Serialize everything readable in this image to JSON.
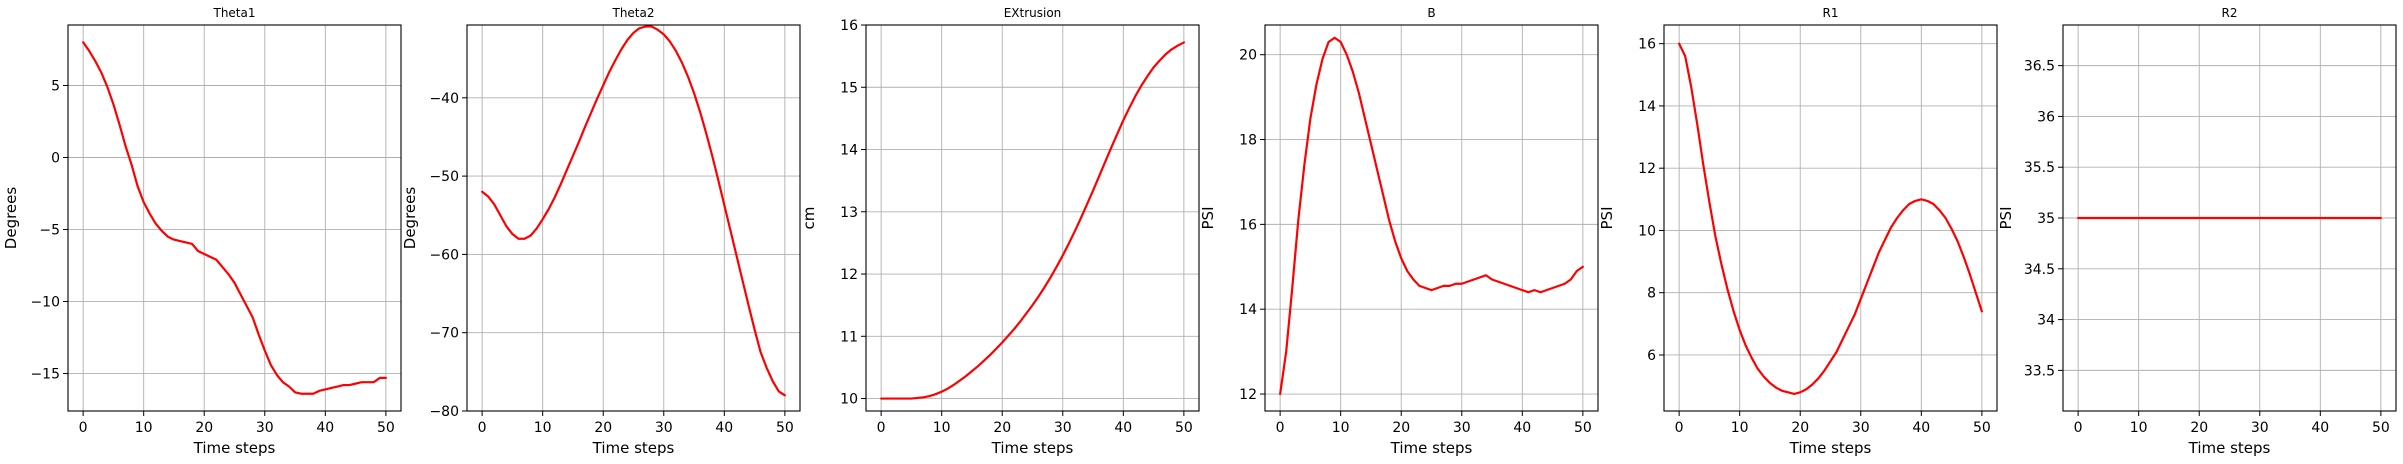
{
  "figure": {
    "line_color": "#ff0000",
    "grid": true
  },
  "chart_data": [
    {
      "type": "line",
      "title": "Theta1",
      "xlabel": "Time steps",
      "ylabel": "Degrees",
      "xlim": [
        -2.5,
        52.5
      ],
      "ylim": [
        -17.6,
        9.2
      ],
      "xticks": [
        0,
        10,
        20,
        30,
        40,
        50
      ],
      "yticks": [
        5,
        0,
        -5,
        -10,
        -15
      ],
      "series": [
        {
          "x": [
            0,
            1,
            2,
            3,
            4,
            5,
            6,
            7,
            8,
            9,
            10,
            11,
            12,
            13,
            14,
            15,
            16,
            17,
            18,
            19,
            20,
            21,
            22,
            23,
            24,
            25,
            26,
            27,
            28,
            29,
            30,
            31,
            32,
            33,
            34,
            35,
            36,
            37,
            38,
            39,
            40,
            41,
            42,
            43,
            44,
            45,
            46,
            47,
            48,
            49,
            50
          ],
          "y": [
            8.0,
            7.4,
            6.7,
            5.9,
            4.9,
            3.7,
            2.3,
            0.8,
            -0.5,
            -2.0,
            -3.1,
            -3.9,
            -4.6,
            -5.1,
            -5.5,
            -5.7,
            -5.8,
            -5.9,
            -6.0,
            -6.5,
            -6.7,
            -6.9,
            -7.1,
            -7.6,
            -8.1,
            -8.7,
            -9.5,
            -10.3,
            -11.1,
            -12.3,
            -13.4,
            -14.4,
            -15.1,
            -15.6,
            -15.9,
            -16.3,
            -16.4,
            -16.4,
            -16.4,
            -16.2,
            -16.1,
            -16.0,
            -15.9,
            -15.8,
            -15.8,
            -15.7,
            -15.6,
            -15.6,
            -15.6,
            -15.3,
            -15.3
          ]
        }
      ]
    },
    {
      "type": "line",
      "title": "Theta2",
      "xlabel": "Time steps",
      "ylabel": "Degrees",
      "xlim": [
        -2.5,
        52.5
      ],
      "ylim": [
        -80,
        -30.7
      ],
      "xticks": [
        0,
        10,
        20,
        30,
        40,
        50
      ],
      "yticks": [
        -40,
        -50,
        -60,
        -70,
        -80
      ],
      "series": [
        {
          "x": [
            0,
            1,
            2,
            3,
            4,
            5,
            6,
            7,
            8,
            9,
            10,
            11,
            12,
            13,
            14,
            15,
            16,
            17,
            18,
            19,
            20,
            21,
            22,
            23,
            24,
            25,
            26,
            27,
            28,
            29,
            30,
            31,
            32,
            33,
            34,
            35,
            36,
            37,
            38,
            39,
            40,
            41,
            42,
            43,
            44,
            45,
            46,
            47,
            48,
            49,
            50
          ],
          "y": [
            -52.0,
            -52.6,
            -53.6,
            -55.0,
            -56.4,
            -57.4,
            -58.0,
            -58.0,
            -57.6,
            -56.7,
            -55.5,
            -54.2,
            -52.7,
            -51.0,
            -49.2,
            -47.4,
            -45.6,
            -43.7,
            -41.9,
            -40.1,
            -38.4,
            -36.7,
            -35.2,
            -33.8,
            -32.6,
            -31.7,
            -31.1,
            -30.9,
            -30.9,
            -31.3,
            -31.9,
            -32.8,
            -34.0,
            -35.5,
            -37.3,
            -39.4,
            -41.8,
            -44.5,
            -47.4,
            -50.5,
            -53.7,
            -56.9,
            -60.1,
            -63.3,
            -66.5,
            -69.6,
            -72.5,
            -74.5,
            -76.2,
            -77.5,
            -78.0
          ]
        }
      ]
    },
    {
      "type": "line",
      "title": "EXtrusion",
      "xlabel": "Time steps",
      "ylabel": "cm",
      "xlim": [
        -2.5,
        52.5
      ],
      "ylim": [
        9.8,
        16.0
      ],
      "xticks": [
        0,
        10,
        20,
        30,
        40,
        50
      ],
      "yticks": [
        16,
        15,
        14,
        13,
        12,
        11,
        10
      ],
      "series": [
        {
          "x": [
            0,
            1,
            2,
            3,
            4,
            5,
            6,
            7,
            8,
            9,
            10,
            11,
            12,
            13,
            14,
            15,
            16,
            17,
            18,
            19,
            20,
            21,
            22,
            23,
            24,
            25,
            26,
            27,
            28,
            29,
            30,
            31,
            32,
            33,
            34,
            35,
            36,
            37,
            38,
            39,
            40,
            41,
            42,
            43,
            44,
            45,
            46,
            47,
            48,
            49,
            50
          ],
          "y": [
            10.0,
            10.0,
            10.0,
            10.0,
            10.0,
            10.0,
            10.01,
            10.02,
            10.04,
            10.07,
            10.11,
            10.16,
            10.22,
            10.29,
            10.36,
            10.44,
            10.52,
            10.61,
            10.7,
            10.8,
            10.9,
            11.01,
            11.12,
            11.24,
            11.37,
            11.5,
            11.64,
            11.79,
            11.95,
            12.12,
            12.3,
            12.49,
            12.69,
            12.9,
            13.12,
            13.34,
            13.57,
            13.8,
            14.03,
            14.25,
            14.47,
            14.67,
            14.86,
            15.03,
            15.18,
            15.32,
            15.43,
            15.53,
            15.61,
            15.67,
            15.72
          ]
        }
      ]
    },
    {
      "type": "line",
      "title": "B",
      "xlabel": "Time steps",
      "ylabel": "PSI",
      "xlim": [
        -2.5,
        52.5
      ],
      "ylim": [
        11.6,
        20.7
      ],
      "xticks": [
        0,
        10,
        20,
        30,
        40,
        50
      ],
      "yticks": [
        20,
        18,
        16,
        14,
        12
      ],
      "series": [
        {
          "x": [
            0,
            1,
            2,
            3,
            4,
            5,
            6,
            7,
            8,
            9,
            10,
            11,
            12,
            13,
            14,
            15,
            16,
            17,
            18,
            19,
            20,
            21,
            22,
            23,
            24,
            25,
            26,
            27,
            28,
            29,
            30,
            31,
            32,
            33,
            34,
            35,
            36,
            37,
            38,
            39,
            40,
            41,
            42,
            43,
            44,
            45,
            46,
            47,
            48,
            49,
            50
          ],
          "y": [
            12.0,
            13.0,
            14.5,
            16.1,
            17.4,
            18.5,
            19.3,
            19.9,
            20.3,
            20.4,
            20.3,
            20.0,
            19.6,
            19.1,
            18.5,
            17.9,
            17.3,
            16.7,
            16.1,
            15.6,
            15.2,
            14.9,
            14.7,
            14.55,
            14.5,
            14.45,
            14.5,
            14.55,
            14.55,
            14.6,
            14.6,
            14.65,
            14.7,
            14.75,
            14.8,
            14.7,
            14.65,
            14.6,
            14.55,
            14.5,
            14.45,
            14.4,
            14.45,
            14.4,
            14.45,
            14.5,
            14.55,
            14.6,
            14.7,
            14.9,
            15.0
          ]
        }
      ]
    },
    {
      "type": "line",
      "title": "R1",
      "xlabel": "Time steps",
      "ylabel": "PSI",
      "xlim": [
        -2.5,
        52.5
      ],
      "ylim": [
        4.2,
        16.6
      ],
      "xticks": [
        0,
        10,
        20,
        30,
        40,
        50
      ],
      "yticks": [
        16,
        14,
        12,
        10,
        8,
        6
      ],
      "series": [
        {
          "x": [
            0,
            1,
            2,
            3,
            4,
            5,
            6,
            7,
            8,
            9,
            10,
            11,
            12,
            13,
            14,
            15,
            16,
            17,
            18,
            19,
            20,
            21,
            22,
            23,
            24,
            25,
            26,
            27,
            28,
            29,
            30,
            31,
            32,
            33,
            34,
            35,
            36,
            37,
            38,
            39,
            40,
            41,
            42,
            43,
            44,
            45,
            46,
            47,
            48,
            49,
            50
          ],
          "y": [
            16.0,
            15.6,
            14.6,
            13.4,
            12.1,
            10.9,
            9.8,
            8.9,
            8.1,
            7.4,
            6.8,
            6.3,
            5.9,
            5.55,
            5.3,
            5.1,
            4.95,
            4.85,
            4.8,
            4.75,
            4.8,
            4.9,
            5.05,
            5.25,
            5.5,
            5.8,
            6.1,
            6.5,
            6.9,
            7.3,
            7.8,
            8.3,
            8.8,
            9.3,
            9.7,
            10.1,
            10.4,
            10.65,
            10.85,
            10.95,
            11.0,
            10.95,
            10.85,
            10.65,
            10.4,
            10.05,
            9.65,
            9.15,
            8.6,
            8.0,
            7.4
          ]
        }
      ]
    },
    {
      "type": "line",
      "title": "R2",
      "xlabel": "Time steps",
      "ylabel": "PSI",
      "xlim": [
        -2.5,
        52.5
      ],
      "ylim": [
        33.1,
        36.9
      ],
      "xticks": [
        0,
        10,
        20,
        30,
        40,
        50
      ],
      "yticks": [
        36.5,
        36.0,
        35.5,
        35.0,
        34.5,
        34.0,
        33.5
      ],
      "series": [
        {
          "x": [
            0,
            50
          ],
          "y": [
            35.0,
            35.0
          ]
        }
      ]
    }
  ]
}
